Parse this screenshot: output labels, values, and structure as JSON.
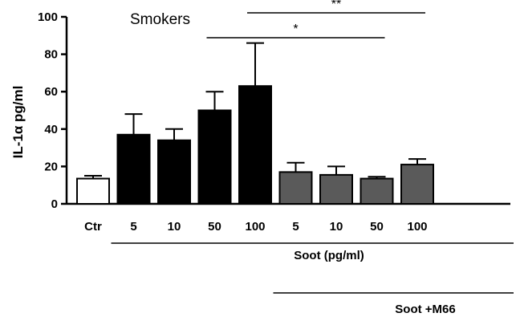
{
  "chart_data": {
    "type": "bar",
    "title": "Smokers",
    "ylabel": "IL-1α pg/ml",
    "ylim": [
      0,
      100
    ],
    "yticks": [
      0,
      20,
      40,
      60,
      80,
      100
    ],
    "categories": [
      "Ctr",
      "5",
      "10",
      "50",
      "100",
      "5",
      "10",
      "50",
      "100"
    ],
    "values": [
      13.5,
      37,
      34,
      50,
      63,
      17,
      15.5,
      13.5,
      21
    ],
    "errors": [
      1.5,
      11,
      6,
      10,
      23,
      5,
      4.5,
      1,
      3
    ],
    "bar_groups": [
      "control",
      "soot",
      "soot",
      "soot",
      "soot",
      "soot_m66",
      "soot_m66",
      "soot_m66",
      "soot_m66"
    ],
    "group_colors": {
      "control": "#ffffff",
      "soot": "#000000",
      "soot_m66": "#5a5a5a"
    },
    "group_labels": [
      {
        "text": "Soot (pg/ml)",
        "from": 1,
        "to": 8
      },
      {
        "text": "Soot +M66",
        "from": 5,
        "to": 8
      }
    ],
    "significance": [
      {
        "label": "**",
        "from": 4,
        "to": 8
      },
      {
        "label": "*",
        "from": 3,
        "to": 7
      }
    ]
  }
}
